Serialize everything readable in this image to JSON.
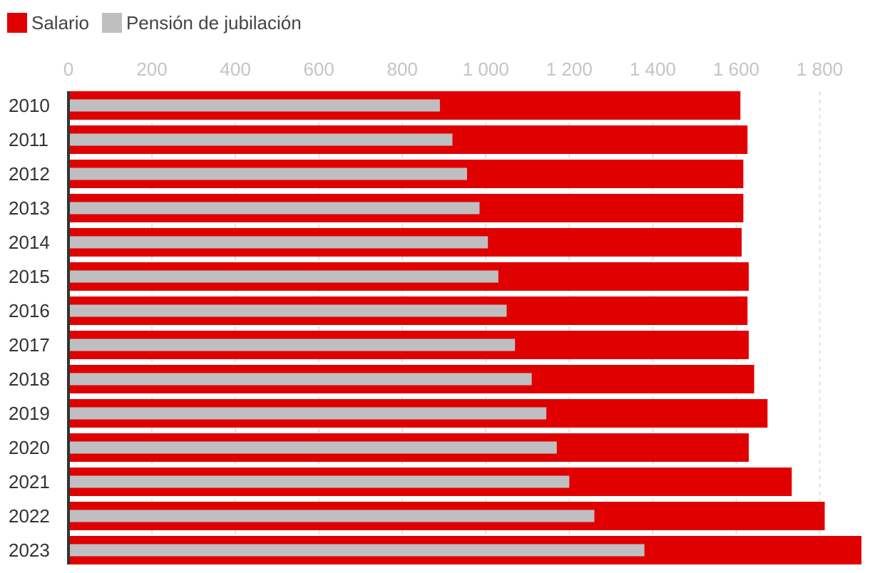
{
  "chart_data": {
    "type": "bar",
    "orientation": "horizontal",
    "categories": [
      "2010",
      "2011",
      "2012",
      "2013",
      "2014",
      "2015",
      "2016",
      "2017",
      "2018",
      "2019",
      "2020",
      "2021",
      "2022",
      "2023"
    ],
    "series": [
      {
        "name": "Salario",
        "color": "#e00000",
        "values": [
          1610,
          1627,
          1617,
          1617,
          1613,
          1630,
          1627,
          1630,
          1643,
          1675,
          1630,
          1733,
          1812,
          1900
        ]
      },
      {
        "name": "Pensión de jubilación",
        "color": "#bfbfc1",
        "values": [
          890,
          920,
          955,
          985,
          1005,
          1030,
          1050,
          1070,
          1110,
          1145,
          1170,
          1200,
          1260,
          1380
        ]
      }
    ],
    "x_ticks": [
      "0",
      "200",
      "400",
      "600",
      "800",
      "1 000",
      "1 200",
      "1 400",
      "1 600",
      "1 800"
    ],
    "x_tick_values": [
      0,
      200,
      400,
      600,
      800,
      1000,
      1200,
      1400,
      1600,
      1800
    ],
    "xlim": [
      0,
      1900
    ],
    "legend_position": "top-left",
    "grid": true
  }
}
